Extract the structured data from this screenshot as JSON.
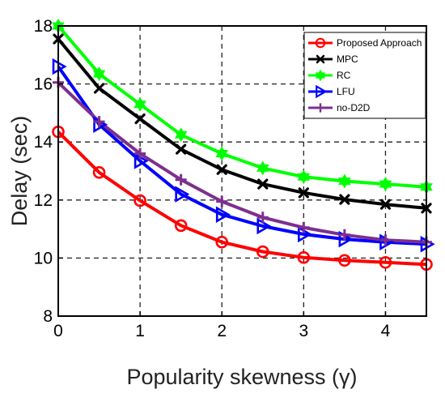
{
  "chart_data": {
    "type": "line",
    "title": "",
    "xlabel": "Popularity skewness (γ)",
    "ylabel": "Delay (sec)",
    "xlim": [
      0,
      4.5
    ],
    "ylim": [
      8,
      18
    ],
    "xticks": [
      0,
      1,
      2,
      3,
      4
    ],
    "yticks": [
      8,
      10,
      12,
      14,
      16,
      18
    ],
    "grid": true,
    "legend_position": "top-right",
    "x": [
      0,
      0.5,
      1,
      1.5,
      2,
      2.5,
      3,
      3.5,
      4,
      4.5
    ],
    "series": [
      {
        "name": "Proposed Approach",
        "color": "#ff0000",
        "marker": "circle",
        "values": [
          14.35,
          12.95,
          11.98,
          11.12,
          10.55,
          10.22,
          10.02,
          9.92,
          9.85,
          9.78
        ]
      },
      {
        "name": "MPC",
        "color": "#000000",
        "marker": "x",
        "values": [
          17.55,
          15.85,
          14.8,
          13.75,
          13.05,
          12.55,
          12.25,
          12.02,
          11.85,
          11.72
        ]
      },
      {
        "name": "RC",
        "color": "#00ff00",
        "marker": "hexagram",
        "values": [
          18.0,
          16.35,
          15.3,
          14.25,
          13.6,
          13.1,
          12.8,
          12.65,
          12.55,
          12.45
        ]
      },
      {
        "name": "LFU",
        "color": "#0000ff",
        "marker": "triangle-right",
        "values": [
          16.6,
          14.6,
          13.35,
          12.2,
          11.5,
          11.1,
          10.82,
          10.65,
          10.55,
          10.48
        ]
      },
      {
        "name": "no-D2D",
        "color": "#7e2f8e",
        "marker": "plus",
        "values": [
          16.05,
          14.7,
          13.6,
          12.7,
          11.95,
          11.4,
          11.05,
          10.8,
          10.62,
          10.55
        ]
      }
    ]
  }
}
